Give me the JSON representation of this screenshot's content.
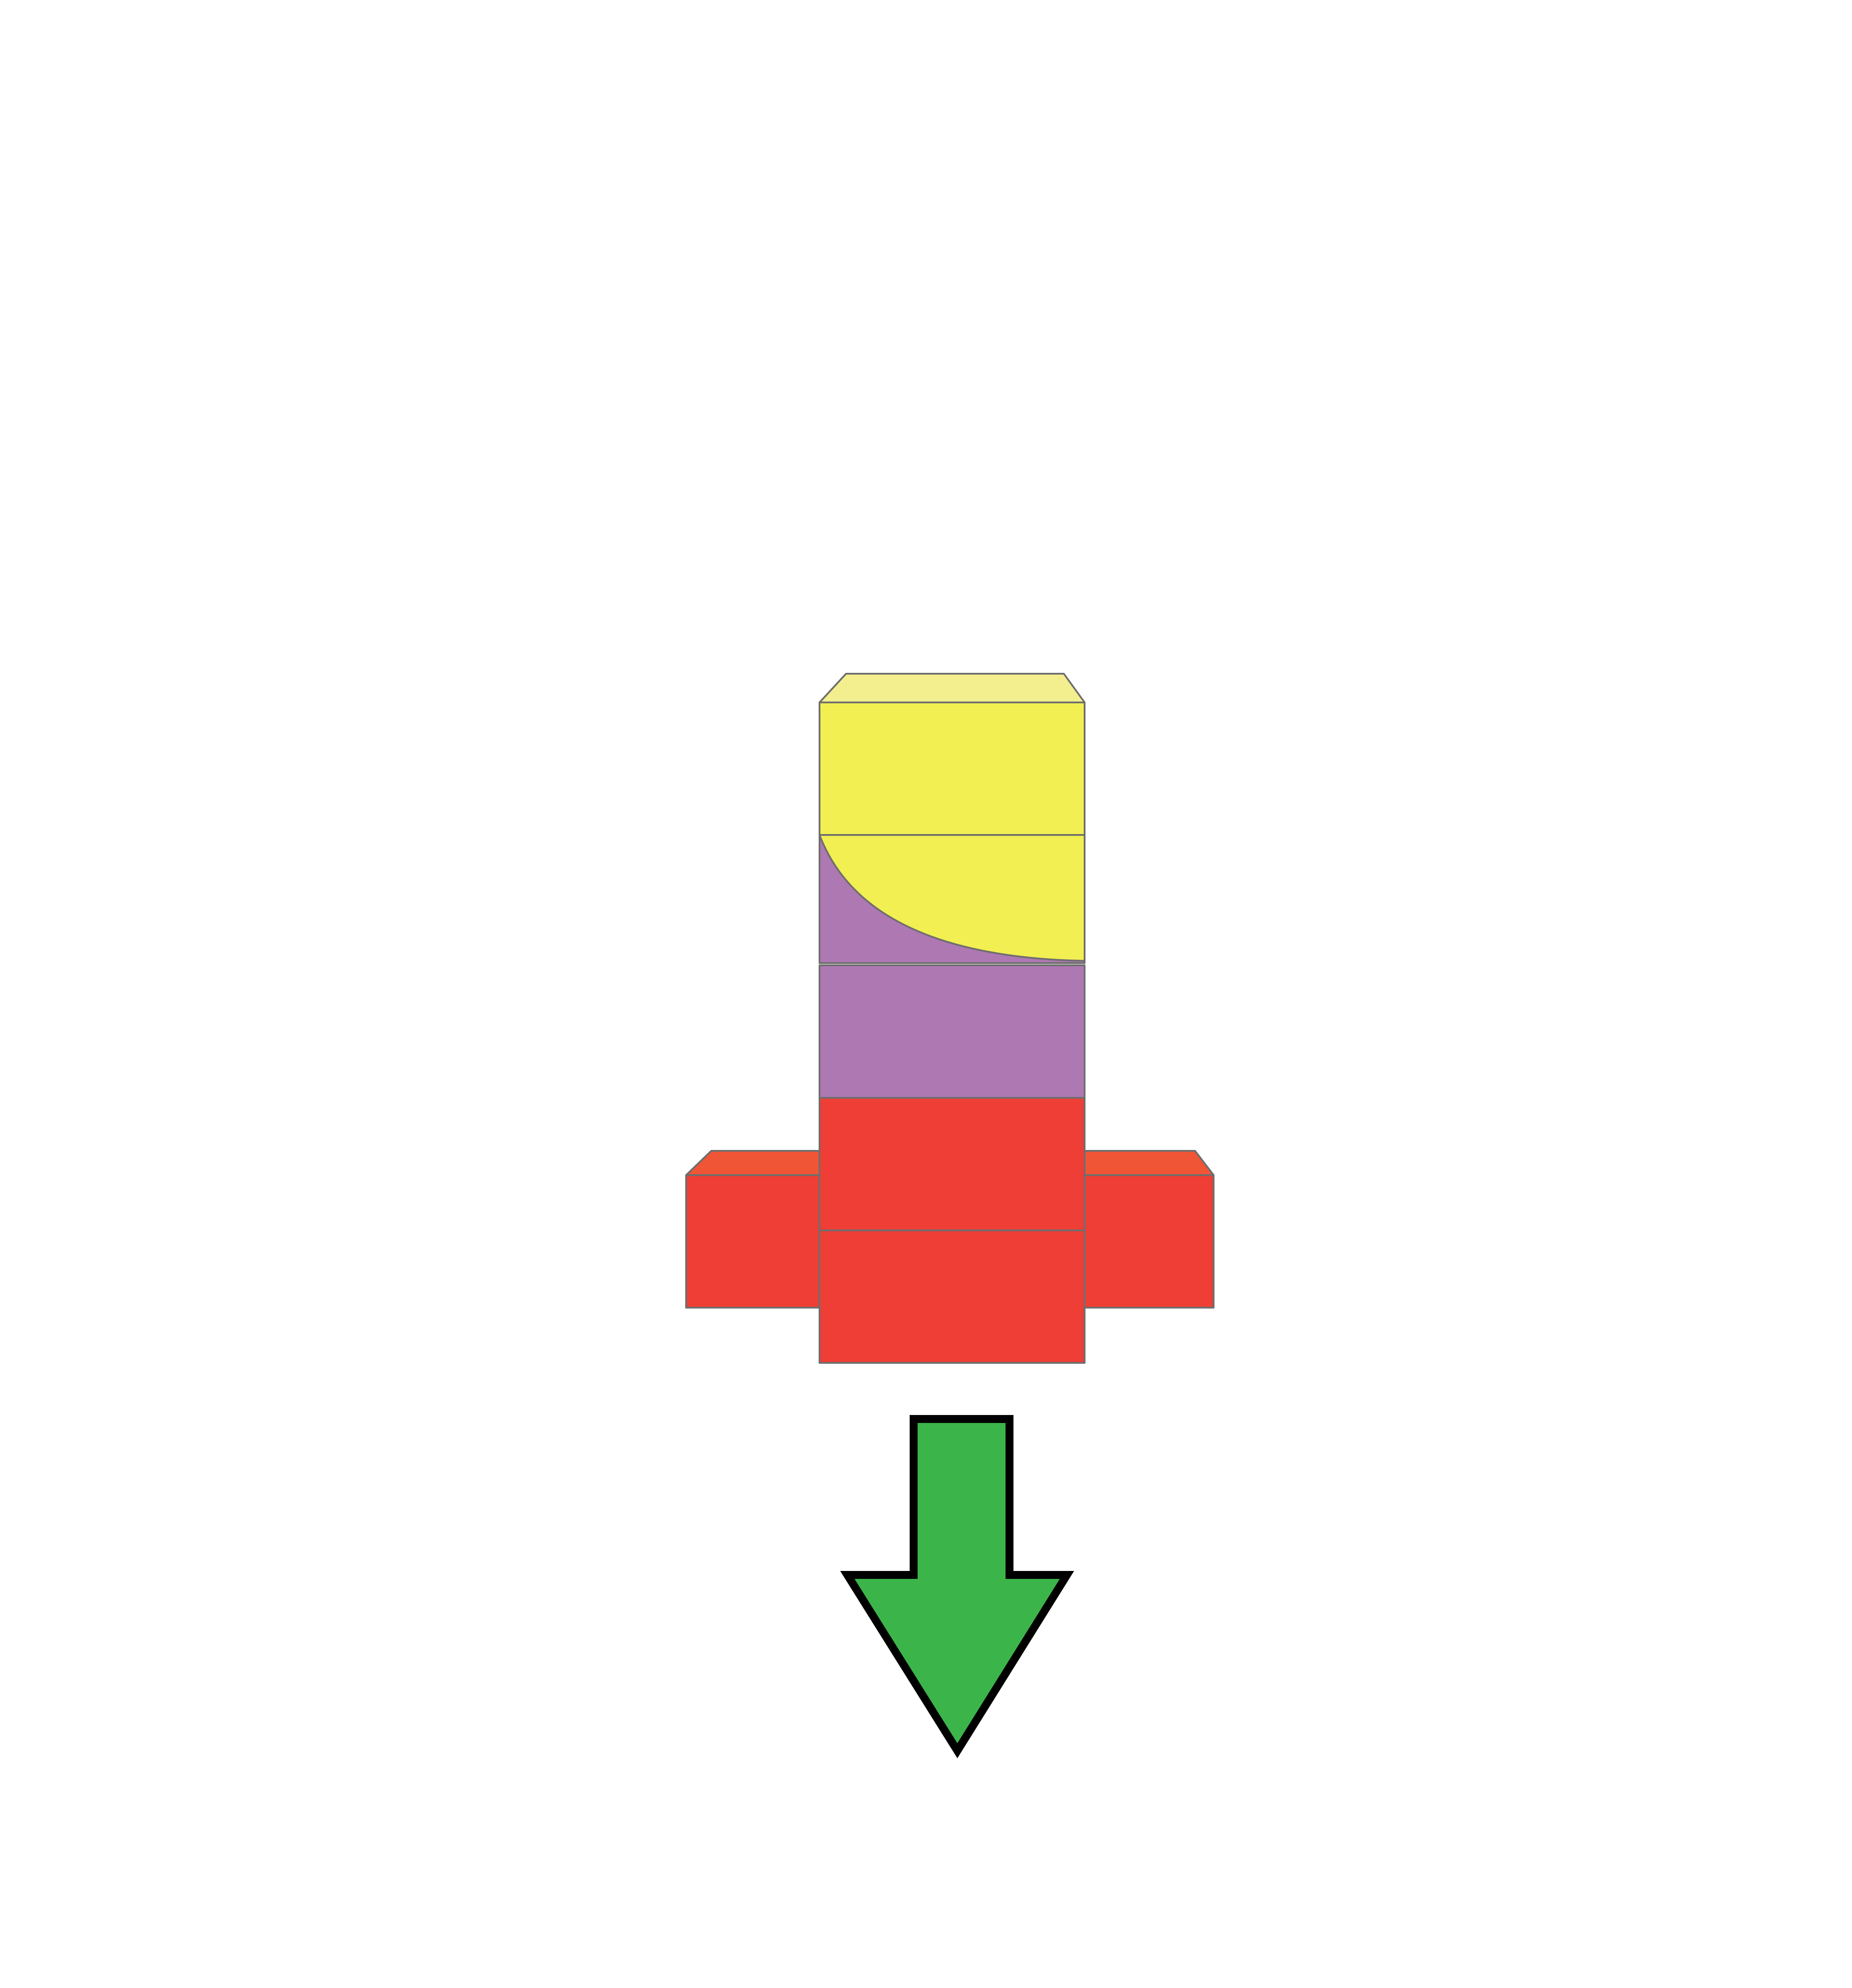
{
  "diagram": {
    "type": "stacked-block-figure",
    "colors": {
      "background": "#ffffff",
      "yellow_front": "#f2ef52",
      "yellow_top": "#f3ee8e",
      "purple": "#ae78b3",
      "red_front": "#ee3e35",
      "red_top": "#f05535",
      "edge": "#6e6e6e",
      "arrow_fill": "#3bb54a",
      "arrow_outline": "#000000"
    },
    "column": {
      "blocks_from_top": [
        "yellow",
        "yellow-purple-split",
        "purple",
        "red",
        "red"
      ]
    },
    "side_blocks": [
      "red-left",
      "red-right"
    ],
    "arrow": {
      "icon": "arrow-down-icon",
      "direction": "down"
    }
  }
}
